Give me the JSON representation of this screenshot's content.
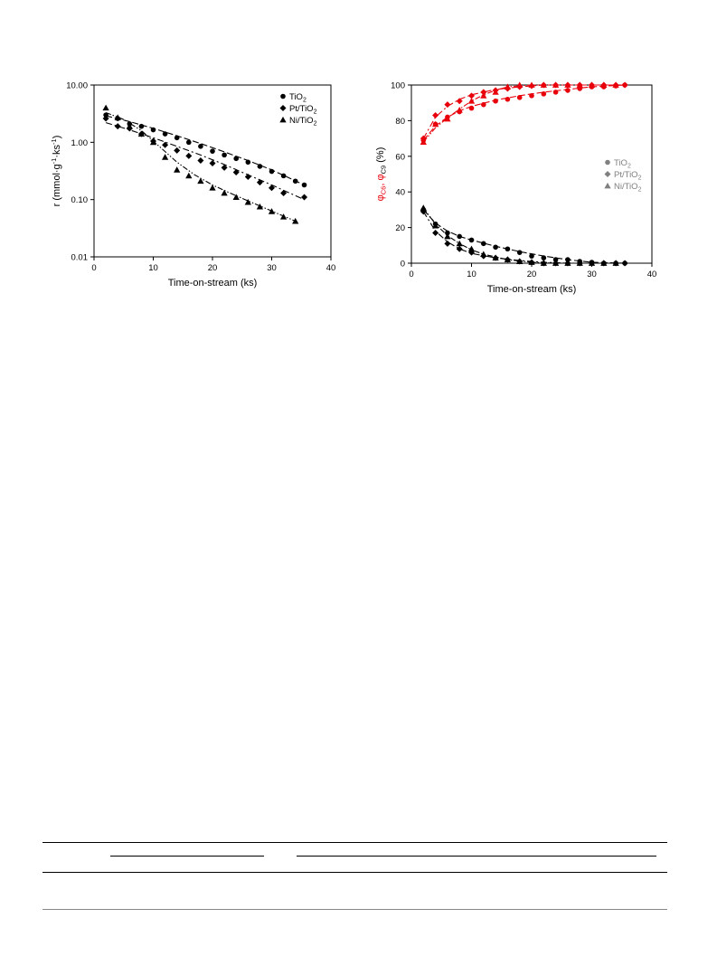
{
  "chart_data": [
    {
      "type": "scatter",
      "title": "",
      "xlabel": "Time-on-stream (ks)",
      "ylabel_parts": [
        "r (mmol",
        "g",
        "-1",
        "ks",
        "-1",
        ")"
      ],
      "yscale": "log",
      "xlim": [
        0,
        40
      ],
      "ylim": [
        0.01,
        10
      ],
      "x_ticks": [
        0,
        10,
        20,
        30,
        40
      ],
      "x_tick_labels": [
        "0",
        "10",
        "20",
        "30",
        "40"
      ],
      "y_ticks": [
        0.01,
        0.1,
        1,
        10
      ],
      "y_tick_labels": [
        "0.01",
        "0.10",
        "1.00",
        "10.00"
      ],
      "legend_position": "top-right",
      "grid": false,
      "series": [
        {
          "name": "TiO2",
          "legend_parts": [
            "TiO",
            "2"
          ],
          "marker": "circle",
          "color": "#000000",
          "x": [
            2.0,
            4.0,
            6.0,
            8.0,
            10.0,
            12.0,
            14.0,
            16.0,
            18.0,
            20.0,
            22.0,
            24.0,
            26.0,
            28.0,
            30.0,
            32.0,
            34.0,
            35.5
          ],
          "y": [
            3.0,
            2.6,
            2.1,
            1.9,
            1.65,
            1.4,
            1.2,
            1.0,
            0.85,
            0.7,
            0.6,
            0.52,
            0.45,
            0.38,
            0.31,
            0.26,
            0.21,
            0.18
          ],
          "fit": {
            "x": [
              2,
              6,
              10,
              14,
              18,
              22,
              26,
              30,
              35.5
            ],
            "y": [
              2.9,
              2.3,
              1.75,
              1.3,
              0.95,
              0.68,
              0.48,
              0.33,
              0.18
            ]
          }
        },
        {
          "name": "Pt/TiO2",
          "legend_parts": [
            "Pt/TiO",
            "2"
          ],
          "marker": "diamond",
          "color": "#000000",
          "x": [
            2.0,
            4.0,
            6.0,
            8.0,
            10.0,
            12.0,
            14.0,
            16.0,
            18.0,
            20.0,
            22.0,
            24.0,
            26.0,
            28.0,
            30.0,
            32.0,
            35.5
          ],
          "y": [
            2.6,
            1.9,
            1.75,
            1.4,
            1.05,
            0.9,
            0.72,
            0.58,
            0.48,
            0.43,
            0.36,
            0.3,
            0.25,
            0.2,
            0.16,
            0.13,
            0.11
          ],
          "fit": {
            "x": [
              2,
              6,
              10,
              14,
              18,
              22,
              26,
              30,
              35.5
            ],
            "y": [
              2.2,
              1.65,
              1.2,
              0.85,
              0.6,
              0.41,
              0.27,
              0.18,
              0.1
            ]
          }
        },
        {
          "name": "Ni/TiO2",
          "legend_parts": [
            "Ni/TiO",
            "2"
          ],
          "marker": "triangle",
          "color": "#000000",
          "x": [
            2.0,
            4.0,
            6.0,
            8.0,
            10.0,
            12.0,
            14.0,
            16.0,
            18.0,
            20.0,
            22.0,
            24.0,
            26.0,
            28.0,
            30.0,
            32.0,
            34.0
          ],
          "y": [
            4.0,
            2.7,
            1.9,
            1.4,
            1.0,
            0.55,
            0.33,
            0.26,
            0.21,
            0.16,
            0.13,
            0.11,
            0.09,
            0.075,
            0.062,
            0.05,
            0.042
          ],
          "fit": {
            "x": [
              2,
              5,
              8,
              11,
              14,
              17,
              20,
              23,
              26,
              29,
              34
            ],
            "y": [
              3.3,
              2.5,
              1.6,
              0.85,
              0.45,
              0.27,
              0.18,
              0.13,
              0.095,
              0.07,
              0.042
            ]
          }
        }
      ]
    },
    {
      "type": "scatter",
      "title": "",
      "xlabel": "Time-on-stream (ks)",
      "ylabel_parts": [
        "φ",
        "C6",
        ", φ",
        "C9",
        " (%)"
      ],
      "ylabel_colors": [
        "#e8000b",
        "#e8000b",
        "#e8000b",
        "#000000",
        "#000000"
      ],
      "xlim": [
        0,
        40
      ],
      "ylim": [
        0,
        100
      ],
      "x_ticks": [
        0,
        10,
        20,
        30,
        40
      ],
      "x_tick_labels": [
        "0",
        "10",
        "20",
        "30",
        "40"
      ],
      "y_ticks": [
        0,
        20,
        40,
        60,
        80,
        100
      ],
      "y_tick_labels": [
        "0",
        "20",
        "40",
        "60",
        "80",
        "100"
      ],
      "legend_position": "right",
      "grid": false,
      "legend": [
        {
          "name": "TiO2",
          "legend_parts": [
            "TiO",
            "2"
          ],
          "marker": "circle",
          "color": "#808080"
        },
        {
          "name": "Pt/TiO2",
          "legend_parts": [
            "Pt/TiO",
            "2"
          ],
          "marker": "diamond",
          "color": "#808080"
        },
        {
          "name": "Ni/TiO2",
          "legend_parts": [
            "Ni/TiO",
            "2"
          ],
          "marker": "triangle",
          "color": "#808080"
        }
      ],
      "series": [
        {
          "group": "C6",
          "material": "TiO2",
          "marker": "circle",
          "color": "#e8000b",
          "x": [
            2,
            4,
            6,
            8,
            10,
            12,
            14,
            16,
            18,
            20,
            22,
            24,
            26,
            28,
            30,
            32,
            34,
            35.5
          ],
          "y": [
            69,
            78,
            82,
            85,
            87,
            89,
            91,
            92,
            93,
            94,
            95,
            96,
            97,
            98,
            99,
            99,
            99.5,
            100
          ],
          "fit": {
            "x": [
              2,
              4,
              6,
              8,
              10,
              14,
              18,
              22,
              26,
              30,
              35.5
            ],
            "y": [
              69,
              77,
              82,
              85.5,
              88,
              91.5,
              94,
              96,
              97.5,
              99,
              100
            ]
          }
        },
        {
          "group": "C6",
          "material": "Pt/TiO2",
          "marker": "diamond",
          "color": "#e8000b",
          "x": [
            2,
            4,
            6,
            8,
            10,
            12,
            14,
            16,
            18,
            20,
            22,
            24,
            26,
            28,
            30,
            32,
            34,
            35.5
          ],
          "y": [
            70,
            83,
            89,
            91,
            94,
            96,
            97,
            98,
            99,
            99.5,
            100,
            100,
            100,
            100,
            100,
            100,
            100,
            100
          ],
          "fit": {
            "x": [
              2,
              4,
              6,
              8,
              10,
              14,
              18,
              22,
              26,
              35.5
            ],
            "y": [
              70,
              82,
              88,
              92,
              94.5,
              97.5,
              99,
              100,
              100,
              100
            ]
          }
        },
        {
          "group": "C6",
          "material": "Ni/TiO2",
          "marker": "triangle",
          "color": "#e8000b",
          "x": [
            2,
            4,
            6,
            8,
            10,
            12,
            14,
            16,
            18,
            20,
            22,
            24,
            26,
            28,
            30,
            32,
            34
          ],
          "y": [
            68,
            78,
            81,
            86,
            91,
            94,
            96,
            99,
            100,
            100,
            100,
            100,
            100,
            100,
            100,
            100,
            100
          ],
          "fit": {
            "x": [
              2,
              4,
              6,
              8,
              10,
              12,
              14,
              16,
              20,
              34
            ],
            "y": [
              68,
              76,
              81.5,
              86.5,
              91,
              94.5,
              97,
              99,
              100,
              100
            ]
          }
        },
        {
          "group": "C9",
          "material": "TiO2",
          "marker": "circle",
          "color": "#000000",
          "x": [
            2,
            4,
            6,
            8,
            10,
            12,
            14,
            16,
            18,
            20,
            22,
            24,
            26,
            28,
            30,
            32,
            34,
            35.5
          ],
          "y": [
            30,
            22,
            17,
            15,
            13,
            11,
            9,
            8,
            6,
            4,
            3,
            2,
            2,
            1,
            0.5,
            0,
            0,
            0
          ],
          "fit": {
            "x": [
              2,
              4,
              6,
              8,
              10,
              14,
              18,
              22,
              26,
              30,
              35.5
            ],
            "y": [
              30,
              22.5,
              18,
              15,
              13,
              9.5,
              6.5,
              4,
              2,
              0.5,
              0
            ]
          }
        },
        {
          "group": "C9",
          "material": "Pt/TiO2",
          "marker": "diamond",
          "color": "#000000",
          "x": [
            2,
            4,
            6,
            8,
            10,
            12,
            14,
            16,
            18,
            20,
            22,
            24,
            26,
            28,
            30,
            32,
            34,
            35.5
          ],
          "y": [
            29,
            17,
            11,
            8,
            6,
            4,
            3,
            2,
            1,
            0.5,
            0,
            0,
            0,
            0,
            0,
            0,
            0,
            0
          ],
          "fit": {
            "x": [
              2,
              4,
              6,
              8,
              10,
              14,
              18,
              22,
              26,
              35.5
            ],
            "y": [
              29,
              18,
              12,
              8,
              5.5,
              3,
              1.5,
              0.5,
              0,
              0
            ]
          }
        },
        {
          "group": "C9",
          "material": "Ni/TiO2",
          "marker": "triangle",
          "color": "#000000",
          "x": [
            2,
            4,
            6,
            8,
            10,
            12,
            14,
            16,
            18,
            20,
            22,
            24,
            26,
            28,
            30,
            32,
            34
          ],
          "y": [
            31,
            21,
            15,
            11,
            8,
            5,
            3,
            2,
            1,
            0.5,
            0,
            0,
            0,
            0,
            0,
            0,
            0
          ],
          "fit": {
            "x": [
              2,
              4,
              6,
              8,
              10,
              12,
              16,
              20,
              24,
              34
            ],
            "y": [
              31,
              22,
              15.5,
              11,
              7.5,
              5,
              2,
              0.5,
              0,
              0
            ]
          }
        }
      ]
    }
  ]
}
